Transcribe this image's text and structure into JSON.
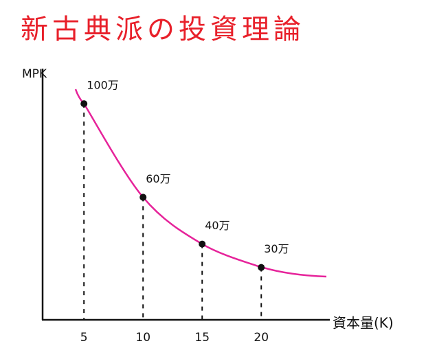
{
  "chart_data": {
    "type": "line",
    "title": "新古典派の投資理論",
    "y_label": "MPK",
    "x_label": "資本量(K)",
    "x": [
      5,
      10,
      15,
      20
    ],
    "values": [
      100,
      60,
      40,
      30
    ],
    "value_labels": [
      "100万",
      "60万",
      "40万",
      "30万"
    ],
    "color": "#e6239a",
    "point_color": "#111111",
    "xlim": [
      1.5,
      25.8
    ],
    "xticks": [
      5,
      10,
      15,
      20
    ],
    "ylim": [
      7.6,
      115
    ]
  }
}
